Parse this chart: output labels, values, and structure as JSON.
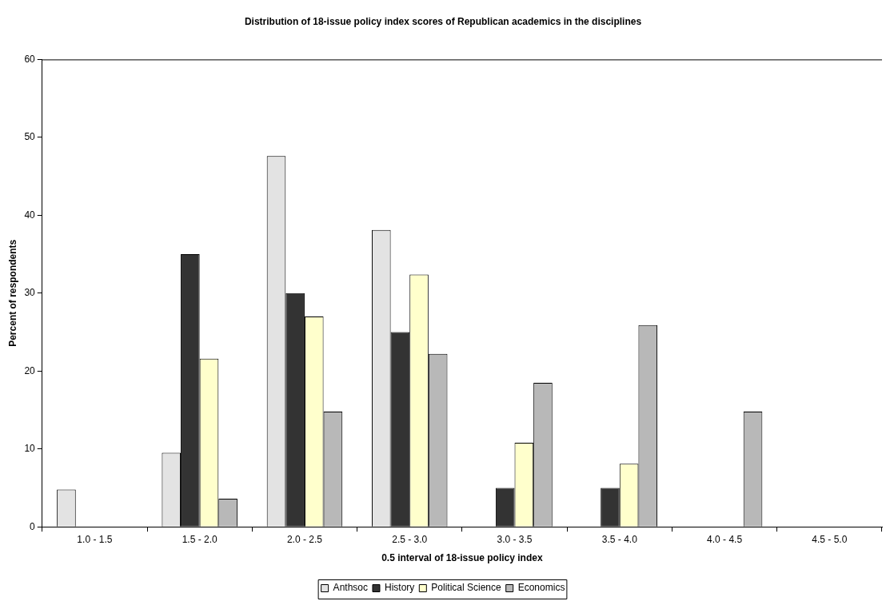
{
  "chart_data": {
    "type": "bar",
    "title": "Distribution of 18-issue policy index scores of Republican academics in the disciplines",
    "xlabel": "0.5 interval of 18-issue policy index",
    "ylabel": "Percent of respondents",
    "categories": [
      "1.0 - 1.5",
      "1.5 - 2.0",
      "2.0 - 2.5",
      "2.5 - 3.0",
      "3.0 - 3.5",
      "3.5 - 4.0",
      "4.0 - 4.5",
      "4.5 - 5.0"
    ],
    "series": [
      {
        "name": "Anthsoc",
        "color": "#e3e3e3",
        "values": [
          4.8,
          9.5,
          47.6,
          38.1,
          0,
          0,
          0,
          0
        ]
      },
      {
        "name": "History",
        "color": "#333333",
        "values": [
          0,
          35,
          30,
          25,
          5,
          5,
          0,
          0
        ]
      },
      {
        "name": "Political Science",
        "color": "#ffffcc",
        "values": [
          0,
          21.6,
          27,
          32.4,
          10.8,
          8.1,
          0,
          0
        ]
      },
      {
        "name": "Economics",
        "color": "#b8b8b8",
        "values": [
          0,
          3.6,
          14.8,
          22.2,
          18.5,
          25.9,
          14.8,
          0
        ]
      }
    ],
    "ylim": [
      0,
      60
    ],
    "yticks": [
      0,
      10,
      20,
      30,
      40,
      50,
      60
    ],
    "grid": false,
    "legend": "bottom"
  }
}
